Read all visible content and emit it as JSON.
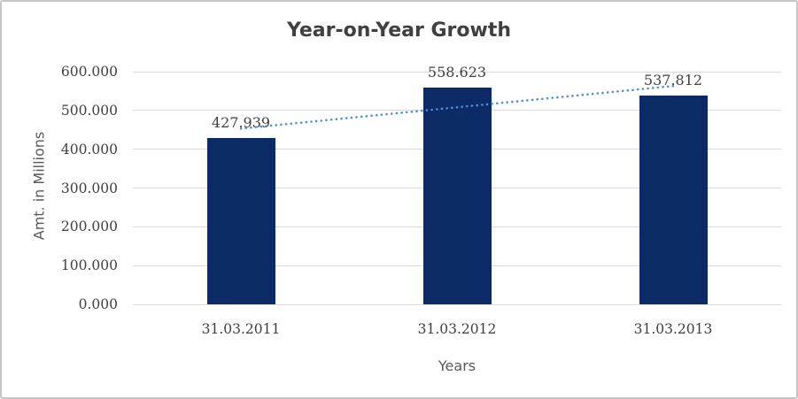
{
  "window": {
    "background": "#FFFFFF",
    "border_color": "#C6C6C6"
  },
  "chart_data": {
    "type": "bar",
    "title": "Year-on-Year Growth",
    "xlabel": "Years",
    "ylabel": "Amt. in Millions",
    "categories": [
      "31.03.2011",
      "31.03.2012",
      "31.03.2013"
    ],
    "values": [
      427.939,
      558.623,
      537.812
    ],
    "data_labels": [
      "427.939",
      "558.623",
      "537.812"
    ],
    "y_ticks": [
      {
        "value": 600,
        "label": "600.000"
      },
      {
        "value": 500,
        "label": "500.000"
      },
      {
        "value": 400,
        "label": "400.000"
      },
      {
        "value": 300,
        "label": "300.000"
      },
      {
        "value": 200,
        "label": "200.000"
      },
      {
        "value": 100,
        "label": "100.000"
      },
      {
        "value": 0,
        "label": "0.000"
      }
    ],
    "ylim": [
      0,
      600
    ],
    "grid": true,
    "legend": "none",
    "trendline": {
      "type": "linear",
      "style": "dotted"
    }
  },
  "style": {
    "bar_color": "#0C2B66",
    "trendline_color": "#4E8FD4",
    "gridline_color": "#D9D9D9",
    "title_color": "#404040",
    "tick_label_color": "#404040",
    "axis_title_color": "#595959"
  }
}
